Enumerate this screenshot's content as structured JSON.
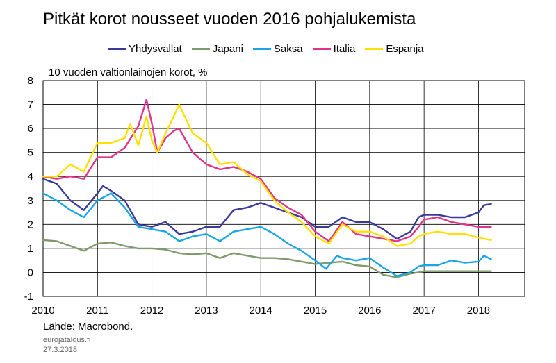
{
  "chart_data": {
    "type": "line",
    "title": "Pitkät korot nousseet vuoden 2016 pohjalukemista",
    "ylabel": "10 vuoden valtionlainojen korot, %",
    "xlabel": "",
    "xlim": [
      2010,
      2018.85
    ],
    "ylim": [
      -1,
      8
    ],
    "yticks": [
      -1,
      0,
      1,
      2,
      3,
      4,
      5,
      6,
      7,
      8
    ],
    "xticks": [
      "2010",
      "2011",
      "2012",
      "2013",
      "2014",
      "2015",
      "2016",
      "2017",
      "2018"
    ],
    "grid": true,
    "legend_position": "top",
    "series": [
      {
        "name": "Yhdysvallat",
        "color": "#3a3a9a",
        "x": [
          2010.0,
          2010.25,
          2010.5,
          2010.75,
          2011.0,
          2011.1,
          2011.25,
          2011.5,
          2011.75,
          2012.0,
          2012.25,
          2012.5,
          2012.75,
          2013.0,
          2013.25,
          2013.5,
          2013.75,
          2014.0,
          2014.25,
          2014.5,
          2014.75,
          2015.0,
          2015.25,
          2015.5,
          2015.75,
          2016.0,
          2016.25,
          2016.5,
          2016.75,
          2016.9,
          2017.0,
          2017.25,
          2017.5,
          2017.75,
          2018.0,
          2018.1,
          2018.23
        ],
        "values": [
          3.9,
          3.7,
          3.0,
          2.6,
          3.3,
          3.6,
          3.4,
          3.0,
          2.0,
          1.9,
          2.1,
          1.6,
          1.7,
          1.9,
          1.9,
          2.6,
          2.7,
          2.9,
          2.7,
          2.5,
          2.3,
          1.9,
          1.9,
          2.3,
          2.1,
          2.1,
          1.8,
          1.4,
          1.7,
          2.3,
          2.4,
          2.4,
          2.3,
          2.3,
          2.5,
          2.8,
          2.85
        ]
      },
      {
        "name": "Japani",
        "color": "#7f9a6a",
        "x": [
          2010.0,
          2010.25,
          2010.5,
          2010.75,
          2011.0,
          2011.25,
          2011.5,
          2011.75,
          2012.0,
          2012.25,
          2012.5,
          2012.75,
          2013.0,
          2013.25,
          2013.5,
          2013.75,
          2014.0,
          2014.25,
          2014.5,
          2014.75,
          2015.0,
          2015.25,
          2015.5,
          2015.75,
          2016.0,
          2016.25,
          2016.5,
          2016.75,
          2016.9,
          2017.0,
          2017.5,
          2018.0,
          2018.23
        ],
        "values": [
          1.35,
          1.3,
          1.1,
          0.9,
          1.2,
          1.25,
          1.1,
          1.0,
          1.0,
          0.95,
          0.8,
          0.75,
          0.8,
          0.6,
          0.8,
          0.7,
          0.6,
          0.6,
          0.55,
          0.45,
          0.35,
          0.4,
          0.45,
          0.3,
          0.25,
          -0.1,
          -0.2,
          -0.05,
          0.0,
          0.05,
          0.05,
          0.05,
          0.05
        ]
      },
      {
        "name": "Saksa",
        "color": "#1aa3e8",
        "x": [
          2010.0,
          2010.25,
          2010.5,
          2010.75,
          2011.0,
          2011.25,
          2011.5,
          2011.75,
          2012.0,
          2012.25,
          2012.5,
          2012.75,
          2013.0,
          2013.25,
          2013.5,
          2013.75,
          2014.0,
          2014.25,
          2014.5,
          2014.75,
          2015.0,
          2015.2,
          2015.4,
          2015.5,
          2015.75,
          2016.0,
          2016.25,
          2016.5,
          2016.75,
          2016.9,
          2017.0,
          2017.25,
          2017.5,
          2017.75,
          2018.0,
          2018.1,
          2018.23
        ],
        "values": [
          3.3,
          3.0,
          2.6,
          2.3,
          3.0,
          3.3,
          2.7,
          1.9,
          1.8,
          1.7,
          1.3,
          1.5,
          1.6,
          1.3,
          1.7,
          1.8,
          1.9,
          1.6,
          1.2,
          0.9,
          0.5,
          0.15,
          0.7,
          0.6,
          0.5,
          0.6,
          0.2,
          -0.15,
          0.0,
          0.25,
          0.3,
          0.3,
          0.5,
          0.4,
          0.45,
          0.7,
          0.55
        ]
      },
      {
        "name": "Italia",
        "color": "#e0338a",
        "x": [
          2010.0,
          2010.25,
          2010.5,
          2010.75,
          2011.0,
          2011.25,
          2011.5,
          2011.75,
          2011.9,
          2012.0,
          2012.1,
          2012.25,
          2012.4,
          2012.5,
          2012.75,
          2013.0,
          2013.25,
          2013.5,
          2013.75,
          2014.0,
          2014.25,
          2014.5,
          2014.75,
          2015.0,
          2015.25,
          2015.5,
          2015.75,
          2016.0,
          2016.25,
          2016.5,
          2016.75,
          2016.9,
          2017.0,
          2017.25,
          2017.5,
          2017.75,
          2018.0,
          2018.23
        ],
        "values": [
          4.0,
          3.9,
          4.0,
          3.9,
          4.8,
          4.8,
          5.2,
          6.1,
          7.2,
          6.2,
          5.0,
          5.6,
          5.9,
          6.0,
          5.0,
          4.5,
          4.3,
          4.4,
          4.2,
          3.9,
          3.1,
          2.7,
          2.4,
          1.7,
          1.3,
          2.1,
          1.6,
          1.5,
          1.4,
          1.3,
          1.5,
          1.9,
          2.2,
          2.3,
          2.1,
          2.0,
          1.9,
          1.9
        ]
      },
      {
        "name": "Espanja",
        "color": "#ffe000",
        "x": [
          2010.0,
          2010.25,
          2010.5,
          2010.75,
          2011.0,
          2011.25,
          2011.5,
          2011.6,
          2011.75,
          2011.9,
          2012.0,
          2012.1,
          2012.25,
          2012.4,
          2012.5,
          2012.75,
          2013.0,
          2013.25,
          2013.5,
          2013.75,
          2014.0,
          2014.25,
          2014.5,
          2014.75,
          2015.0,
          2015.25,
          2015.5,
          2015.75,
          2016.0,
          2016.25,
          2016.5,
          2016.75,
          2016.9,
          2017.0,
          2017.25,
          2017.5,
          2017.75,
          2018.0,
          2018.23
        ],
        "values": [
          4.0,
          4.0,
          4.5,
          4.2,
          5.4,
          5.4,
          5.6,
          6.2,
          5.3,
          6.5,
          5.5,
          5.0,
          5.8,
          6.5,
          7.0,
          5.8,
          5.4,
          4.5,
          4.6,
          4.1,
          3.8,
          3.0,
          2.5,
          2.1,
          1.5,
          1.2,
          2.0,
          1.7,
          1.7,
          1.5,
          1.1,
          1.2,
          1.5,
          1.6,
          1.7,
          1.6,
          1.6,
          1.45,
          1.35
        ]
      }
    ],
    "source": "Lähde: Macrobond."
  },
  "footer": {
    "site": "eurojatalous.fi",
    "date": "27.3.2018"
  }
}
